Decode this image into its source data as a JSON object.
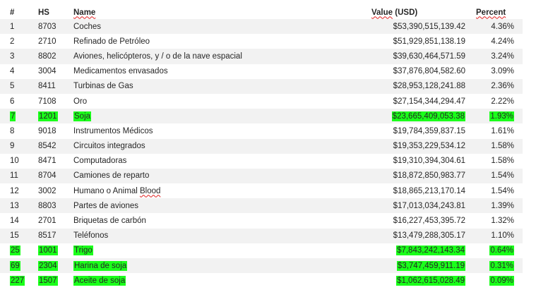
{
  "table": {
    "headers": {
      "rank": "#",
      "hs": "HS",
      "name": "Name",
      "value": "Value (USD)",
      "percent": "Percent"
    },
    "rows": [
      {
        "rank": "1",
        "hs": "8703",
        "name": "Coches",
        "value": "$53,390,515,139.42",
        "percent": "4.36%",
        "highlight": false
      },
      {
        "rank": "2",
        "hs": "2710",
        "name": "Refinado de Petróleo",
        "value": "$51,929,851,138.19",
        "percent": "4.24%",
        "highlight": false
      },
      {
        "rank": "3",
        "hs": "8802",
        "name": "Aviones, helicópteros, y / o de la nave espacial",
        "value": "$39,630,464,571.59",
        "percent": "3.24%",
        "highlight": false
      },
      {
        "rank": "4",
        "hs": "3004",
        "name": "Medicamentos envasados",
        "value": "$37,876,804,582.60",
        "percent": "3.09%",
        "highlight": false
      },
      {
        "rank": "5",
        "hs": "8411",
        "name": "Turbinas de Gas",
        "value": "$28,953,128,241.88",
        "percent": "2.36%",
        "highlight": false
      },
      {
        "rank": "6",
        "hs": "7108",
        "name": "Oro",
        "value": "$27,154,344,294.47",
        "percent": "2.22%",
        "highlight": false
      },
      {
        "rank": "7",
        "hs": "1201",
        "name": "Soja",
        "value": "$23,665,409,053.38",
        "percent": "1.93%",
        "highlight": true
      },
      {
        "rank": "8",
        "hs": "9018",
        "name": "Instrumentos Médicos",
        "value": "$19,784,359,837.15",
        "percent": "1.61%",
        "highlight": false
      },
      {
        "rank": "9",
        "hs": "8542",
        "name": "Circuitos integrados",
        "value": "$19,353,229,534.12",
        "percent": "1.58%",
        "highlight": false
      },
      {
        "rank": "10",
        "hs": "8471",
        "name": "Computadoras",
        "value": "$19,310,394,304.61",
        "percent": "1.58%",
        "highlight": false
      },
      {
        "rank": "11",
        "hs": "8704",
        "name": "Camiones de reparto",
        "value": "$18,872,850,983.77",
        "percent": "1.54%",
        "highlight": false
      },
      {
        "rank": "12",
        "hs": "3002",
        "name": "Humano o Animal Blood",
        "value": "$18,865,213,170.14",
        "percent": "1.54%",
        "highlight": false
      },
      {
        "rank": "13",
        "hs": "8803",
        "name": "Partes de aviones",
        "value": "$17,013,034,243.81",
        "percent": "1.39%",
        "highlight": false
      },
      {
        "rank": "14",
        "hs": "2701",
        "name": "Briquetas de carbón",
        "value": "$16,227,453,395.72",
        "percent": "1.32%",
        "highlight": false
      },
      {
        "rank": "15",
        "hs": "8517",
        "name": "Teléfonos",
        "value": "$13,479,288,305.17",
        "percent": "1.10%",
        "highlight": false
      },
      {
        "rank": "25",
        "hs": "1001",
        "name": "Trigo",
        "value": "$7,843,242,143.34",
        "percent": "0.64%",
        "highlight": true
      },
      {
        "rank": "69",
        "hs": "2304",
        "name": "Harina de soja",
        "value": "$3,747,459,911.19",
        "percent": "0.31%",
        "highlight": true
      },
      {
        "rank": "227",
        "hs": "1507",
        "name": "Aceite de soja",
        "value": "$1,062,615,028.49",
        "percent": "0.09%",
        "highlight": true
      }
    ]
  },
  "colors": {
    "highlight": "#1aff1a",
    "band": "#f2f2f2",
    "text": "#262626"
  }
}
